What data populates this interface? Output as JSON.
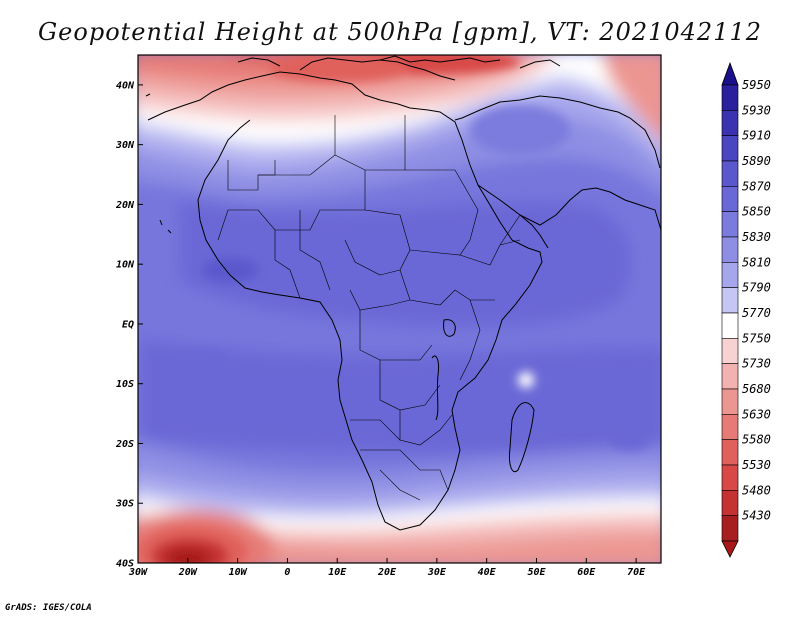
{
  "title": "Geopotential Height at 500hPa [gpm], VT: 2021042112",
  "credit": "GrADS: IGES/COLA",
  "map": {
    "projection": "lat-lon",
    "lon_range": [
      -30,
      75
    ],
    "lat_range": [
      -40,
      45
    ],
    "lat_ticks": [
      {
        "value": 40,
        "label": "40N"
      },
      {
        "value": 30,
        "label": "30N"
      },
      {
        "value": 20,
        "label": "20N"
      },
      {
        "value": 10,
        "label": "10N"
      },
      {
        "value": 0,
        "label": "EQ"
      },
      {
        "value": -10,
        "label": "10S"
      },
      {
        "value": -20,
        "label": "20S"
      },
      {
        "value": -30,
        "label": "30S"
      },
      {
        "value": -40,
        "label": "40S"
      }
    ],
    "lon_ticks": [
      {
        "value": -30,
        "label": "30W"
      },
      {
        "value": -20,
        "label": "20W"
      },
      {
        "value": -10,
        "label": "10W"
      },
      {
        "value": 0,
        "label": "0"
      },
      {
        "value": 10,
        "label": "10E"
      },
      {
        "value": 20,
        "label": "20E"
      },
      {
        "value": 30,
        "label": "30E"
      },
      {
        "value": 40,
        "label": "40E"
      },
      {
        "value": 50,
        "label": "50E"
      },
      {
        "value": 60,
        "label": "60E"
      },
      {
        "value": 70,
        "label": "70E"
      }
    ],
    "coastline_color": "#000000"
  },
  "colorbar": {
    "levels": [
      {
        "label": "5950",
        "color": "#2a1f9c"
      },
      {
        "label": "5930",
        "color": "#3a32b0"
      },
      {
        "label": "5910",
        "color": "#4a46c2"
      },
      {
        "label": "5890",
        "color": "#5a58cc"
      },
      {
        "label": "5870",
        "color": "#6a68d6"
      },
      {
        "label": "5850",
        "color": "#7b7bde"
      },
      {
        "label": "5830",
        "color": "#8e8ee4"
      },
      {
        "label": "5810",
        "color": "#a6a6ec"
      },
      {
        "label": "5790",
        "color": "#c6c6f4"
      },
      {
        "label": "5770",
        "color": "#ffffff"
      },
      {
        "label": "5750",
        "color": "#f8d2d2"
      },
      {
        "label": "5730",
        "color": "#f2b2b0"
      },
      {
        "label": "5680",
        "color": "#ec9692"
      },
      {
        "label": "5630",
        "color": "#e67a76"
      },
      {
        "label": "5580",
        "color": "#e0605c"
      },
      {
        "label": "5530",
        "color": "#d84846"
      },
      {
        "label": "5480",
        "color": "#c43232"
      },
      {
        "label": "5430",
        "color": "#a81e1e"
      }
    ],
    "top_cap_color": "#1a108a",
    "bottom_cap_color": "#a81818"
  }
}
